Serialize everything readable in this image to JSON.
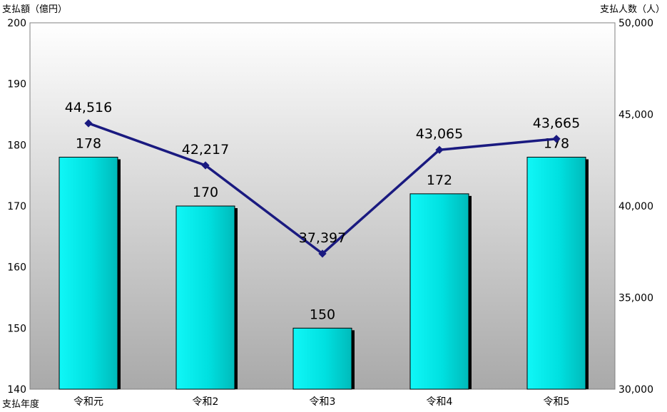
{
  "chart_data": {
    "type": "bar+line",
    "categories": [
      "令和元",
      "令和2",
      "令和3",
      "令和4",
      "令和5"
    ],
    "x_axis_label": "支払年度",
    "left_axis": {
      "label": "支払額（億円）",
      "min": 140,
      "max": 200,
      "step": 10
    },
    "right_axis": {
      "label": "支払人数（人）",
      "min": 30000,
      "max": 50000,
      "step": 5000
    },
    "bar_values": [
      178,
      170,
      150,
      172,
      178
    ],
    "bar_labels": [
      "178",
      "170",
      "150",
      "172",
      "178"
    ],
    "line_values": [
      44516,
      42217,
      37397,
      43065,
      43665
    ],
    "line_labels": [
      "44,516",
      "42,217",
      "37,397",
      "43,065",
      "43,665"
    ],
    "colors": {
      "bar": "#00e5e5",
      "line": "#1a1a80",
      "background_top": "#ffffff",
      "background_bottom": "#a9a9a9"
    }
  }
}
